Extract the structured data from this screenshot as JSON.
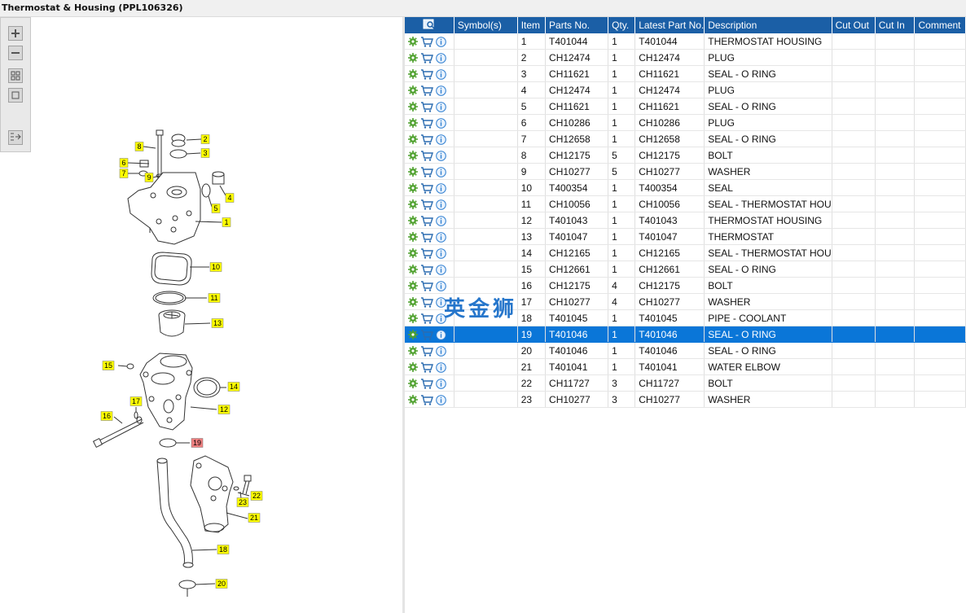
{
  "window": {
    "title": "Thermostat & Housing (PPL106326)"
  },
  "toolbar": {
    "buttons": [
      {
        "name": "zoom-in-button",
        "icon": "plus-icon"
      },
      {
        "name": "zoom-out-button",
        "icon": "minus-icon"
      },
      {
        "name": "fit-all-button",
        "icon": "grid-icon"
      },
      {
        "name": "fit-page-button",
        "icon": "square-icon"
      },
      {
        "name": "export-list-button",
        "icon": "list-arrow-icon"
      }
    ]
  },
  "diagram": {
    "callouts": [
      "1",
      "2",
      "3",
      "4",
      "5",
      "6",
      "7",
      "8",
      "9",
      "10",
      "11",
      "12",
      "13",
      "14",
      "15",
      "16",
      "17",
      "18",
      "19",
      "20",
      "21",
      "22",
      "23"
    ],
    "highlighted_callout": "19"
  },
  "grid": {
    "columns": [
      "Symbol(s)",
      "Item",
      "Parts No.",
      "Qty.",
      "Latest Part No.",
      "Description",
      "Cut Out",
      "Cut In",
      "Comment"
    ],
    "rows": [
      {
        "item": "1",
        "part": "T401044",
        "qty": "1",
        "latest": "T401044",
        "desc": "THERMOSTAT HOUSING"
      },
      {
        "item": "2",
        "part": "CH12474",
        "qty": "1",
        "latest": "CH12474",
        "desc": "PLUG"
      },
      {
        "item": "3",
        "part": "CH11621",
        "qty": "1",
        "latest": "CH11621",
        "desc": "SEAL - O RING"
      },
      {
        "item": "4",
        "part": "CH12474",
        "qty": "1",
        "latest": "CH12474",
        "desc": "PLUG"
      },
      {
        "item": "5",
        "part": "CH11621",
        "qty": "1",
        "latest": "CH11621",
        "desc": "SEAL - O RING"
      },
      {
        "item": "6",
        "part": "CH10286",
        "qty": "1",
        "latest": "CH10286",
        "desc": "PLUG"
      },
      {
        "item": "7",
        "part": "CH12658",
        "qty": "1",
        "latest": "CH12658",
        "desc": "SEAL - O RING"
      },
      {
        "item": "8",
        "part": "CH12175",
        "qty": "5",
        "latest": "CH12175",
        "desc": "BOLT"
      },
      {
        "item": "9",
        "part": "CH10277",
        "qty": "5",
        "latest": "CH10277",
        "desc": "WASHER"
      },
      {
        "item": "10",
        "part": "T400354",
        "qty": "1",
        "latest": "T400354",
        "desc": "SEAL"
      },
      {
        "item": "11",
        "part": "CH10056",
        "qty": "1",
        "latest": "CH10056",
        "desc": "SEAL - THERMOSTAT HOU"
      },
      {
        "item": "12",
        "part": "T401043",
        "qty": "1",
        "latest": "T401043",
        "desc": "THERMOSTAT HOUSING"
      },
      {
        "item": "13",
        "part": "T401047",
        "qty": "1",
        "latest": "T401047",
        "desc": "THERMOSTAT"
      },
      {
        "item": "14",
        "part": "CH12165",
        "qty": "1",
        "latest": "CH12165",
        "desc": "SEAL - THERMOSTAT HOU"
      },
      {
        "item": "15",
        "part": "CH12661",
        "qty": "1",
        "latest": "CH12661",
        "desc": "SEAL - O RING"
      },
      {
        "item": "16",
        "part": "CH12175",
        "qty": "4",
        "latest": "CH12175",
        "desc": "BOLT"
      },
      {
        "item": "17",
        "part": "CH10277",
        "qty": "4",
        "latest": "CH10277",
        "desc": "WASHER"
      },
      {
        "item": "18",
        "part": "T401045",
        "qty": "1",
        "latest": "T401045",
        "desc": "PIPE - COOLANT"
      },
      {
        "item": "19",
        "part": "T401046",
        "qty": "1",
        "latest": "T401046",
        "desc": "SEAL - O RING"
      },
      {
        "item": "20",
        "part": "T401046",
        "qty": "1",
        "latest": "T401046",
        "desc": "SEAL - O RING"
      },
      {
        "item": "21",
        "part": "T401041",
        "qty": "1",
        "latest": "T401041",
        "desc": "WATER ELBOW"
      },
      {
        "item": "22",
        "part": "CH11727",
        "qty": "3",
        "latest": "CH11727",
        "desc": "BOLT"
      },
      {
        "item": "23",
        "part": "CH10277",
        "qty": "3",
        "latest": "CH10277",
        "desc": "WASHER"
      }
    ],
    "selected_item": "19"
  },
  "watermark": {
    "text": "英金狮"
  },
  "colors": {
    "header_bg": "#1b5fa6",
    "selected_row": "#0a76d8",
    "callout_bg": "#ffff00",
    "callout_highlight": "#f08080",
    "gear_icon": "#4fa12e",
    "cart_icon": "#2b6cb0",
    "info_icon": "#2f7fd1"
  }
}
